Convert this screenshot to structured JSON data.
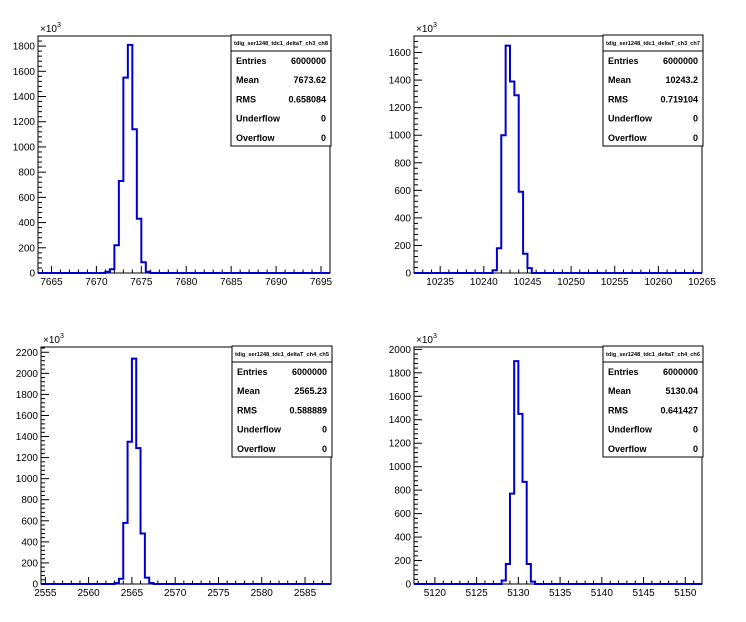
{
  "axis_multiplier_label": "×10",
  "axis_multiplier_exp": "3",
  "stats_labels": [
    "Entries",
    "Mean",
    "RMS",
    "Underflow",
    "Overflow"
  ],
  "colors": {
    "histogram": "#0000cc",
    "axis": "#000000",
    "background": "#ffffff"
  },
  "chart_data": [
    {
      "type": "bar",
      "title": "tdig_ser1248_tdc1_deltaT_ch3_ch8",
      "bin_width": 0.5,
      "xlim": [
        7663.5,
        7696
      ],
      "xticks": [
        7665,
        7670,
        7675,
        7680,
        7685,
        7690,
        7695
      ],
      "ylim": [
        0,
        1880
      ],
      "yticks": [
        0,
        200,
        400,
        600,
        800,
        1000,
        1200,
        1400,
        1600,
        1800
      ],
      "bins": [
        {
          "x": 7671.0,
          "y": 10
        },
        {
          "x": 7671.5,
          "y": 30
        },
        {
          "x": 7672.0,
          "y": 220
        },
        {
          "x": 7672.5,
          "y": 730
        },
        {
          "x": 7673.0,
          "y": 1550
        },
        {
          "x": 7673.5,
          "y": 1810
        },
        {
          "x": 7674.0,
          "y": 1140
        },
        {
          "x": 7674.5,
          "y": 430
        },
        {
          "x": 7675.0,
          "y": 85
        },
        {
          "x": 7675.5,
          "y": 10
        }
      ],
      "stats": {
        "Entries": "6000000",
        "Mean": "7673.62",
        "RMS": "0.658084",
        "Underflow": "0",
        "Overflow": "0"
      }
    },
    {
      "type": "bar",
      "title": "tdig_ser1248_tdc1_deltaT_ch3_ch7",
      "bin_width": 0.5,
      "xlim": [
        10232,
        10265
      ],
      "xticks": [
        10235,
        10240,
        10245,
        10250,
        10255,
        10260,
        10265
      ],
      "ylim": [
        0,
        1720
      ],
      "yticks": [
        0,
        200,
        400,
        600,
        800,
        1000,
        1200,
        1400,
        1600
      ],
      "bins": [
        {
          "x": 10241.0,
          "y": 20
        },
        {
          "x": 10241.5,
          "y": 180
        },
        {
          "x": 10242.0,
          "y": 1000
        },
        {
          "x": 10242.5,
          "y": 1650
        },
        {
          "x": 10243.0,
          "y": 1390
        },
        {
          "x": 10243.5,
          "y": 1290
        },
        {
          "x": 10244.0,
          "y": 590
        },
        {
          "x": 10244.5,
          "y": 140
        },
        {
          "x": 10245.0,
          "y": 35
        }
      ],
      "stats": {
        "Entries": "6000000",
        "Mean": "10243.2",
        "RMS": "0.719104",
        "Underflow": "0",
        "Overflow": "0"
      }
    },
    {
      "type": "bar",
      "title": "tdig_ser1248_tdc1_deltaT_ch4_ch5",
      "bin_width": 0.5,
      "xlim": [
        2554.5,
        2588
      ],
      "xticks": [
        2555,
        2560,
        2565,
        2570,
        2575,
        2580,
        2585
      ],
      "ylim": [
        0,
        2250
      ],
      "yticks": [
        0,
        200,
        400,
        600,
        800,
        1000,
        1200,
        1400,
        1600,
        1800,
        2000,
        2200
      ],
      "bins": [
        {
          "x": 2563.0,
          "y": 10
        },
        {
          "x": 2563.5,
          "y": 50
        },
        {
          "x": 2564.0,
          "y": 580
        },
        {
          "x": 2564.5,
          "y": 1350
        },
        {
          "x": 2565.0,
          "y": 2140
        },
        {
          "x": 2565.5,
          "y": 1290
        },
        {
          "x": 2566.0,
          "y": 480
        },
        {
          "x": 2566.5,
          "y": 60
        },
        {
          "x": 2567.0,
          "y": 10
        }
      ],
      "stats": {
        "Entries": "6000000",
        "Mean": "2565.23",
        "RMS": "0.588889",
        "Underflow": "0",
        "Overflow": "0"
      }
    },
    {
      "type": "bar",
      "title": "tdig_ser1248_tdc1_deltaT_ch4_ch6",
      "bin_width": 0.5,
      "xlim": [
        5117.5,
        5152
      ],
      "xticks": [
        5120,
        5125,
        5130,
        5135,
        5140,
        5145,
        5150
      ],
      "ylim": [
        0,
        2020
      ],
      "yticks": [
        0,
        200,
        400,
        600,
        800,
        1000,
        1200,
        1400,
        1600,
        1800,
        2000
      ],
      "bins": [
        {
          "x": 5128.0,
          "y": 30
        },
        {
          "x": 5128.5,
          "y": 170
        },
        {
          "x": 5129.0,
          "y": 770
        },
        {
          "x": 5129.5,
          "y": 1900
        },
        {
          "x": 5130.0,
          "y": 1450
        },
        {
          "x": 5130.5,
          "y": 870
        },
        {
          "x": 5131.0,
          "y": 170
        },
        {
          "x": 5131.5,
          "y": 20
        }
      ],
      "stats": {
        "Entries": "6000000",
        "Mean": "5130.04",
        "RMS": "0.641427",
        "Underflow": "0",
        "Overflow": "0"
      }
    }
  ]
}
